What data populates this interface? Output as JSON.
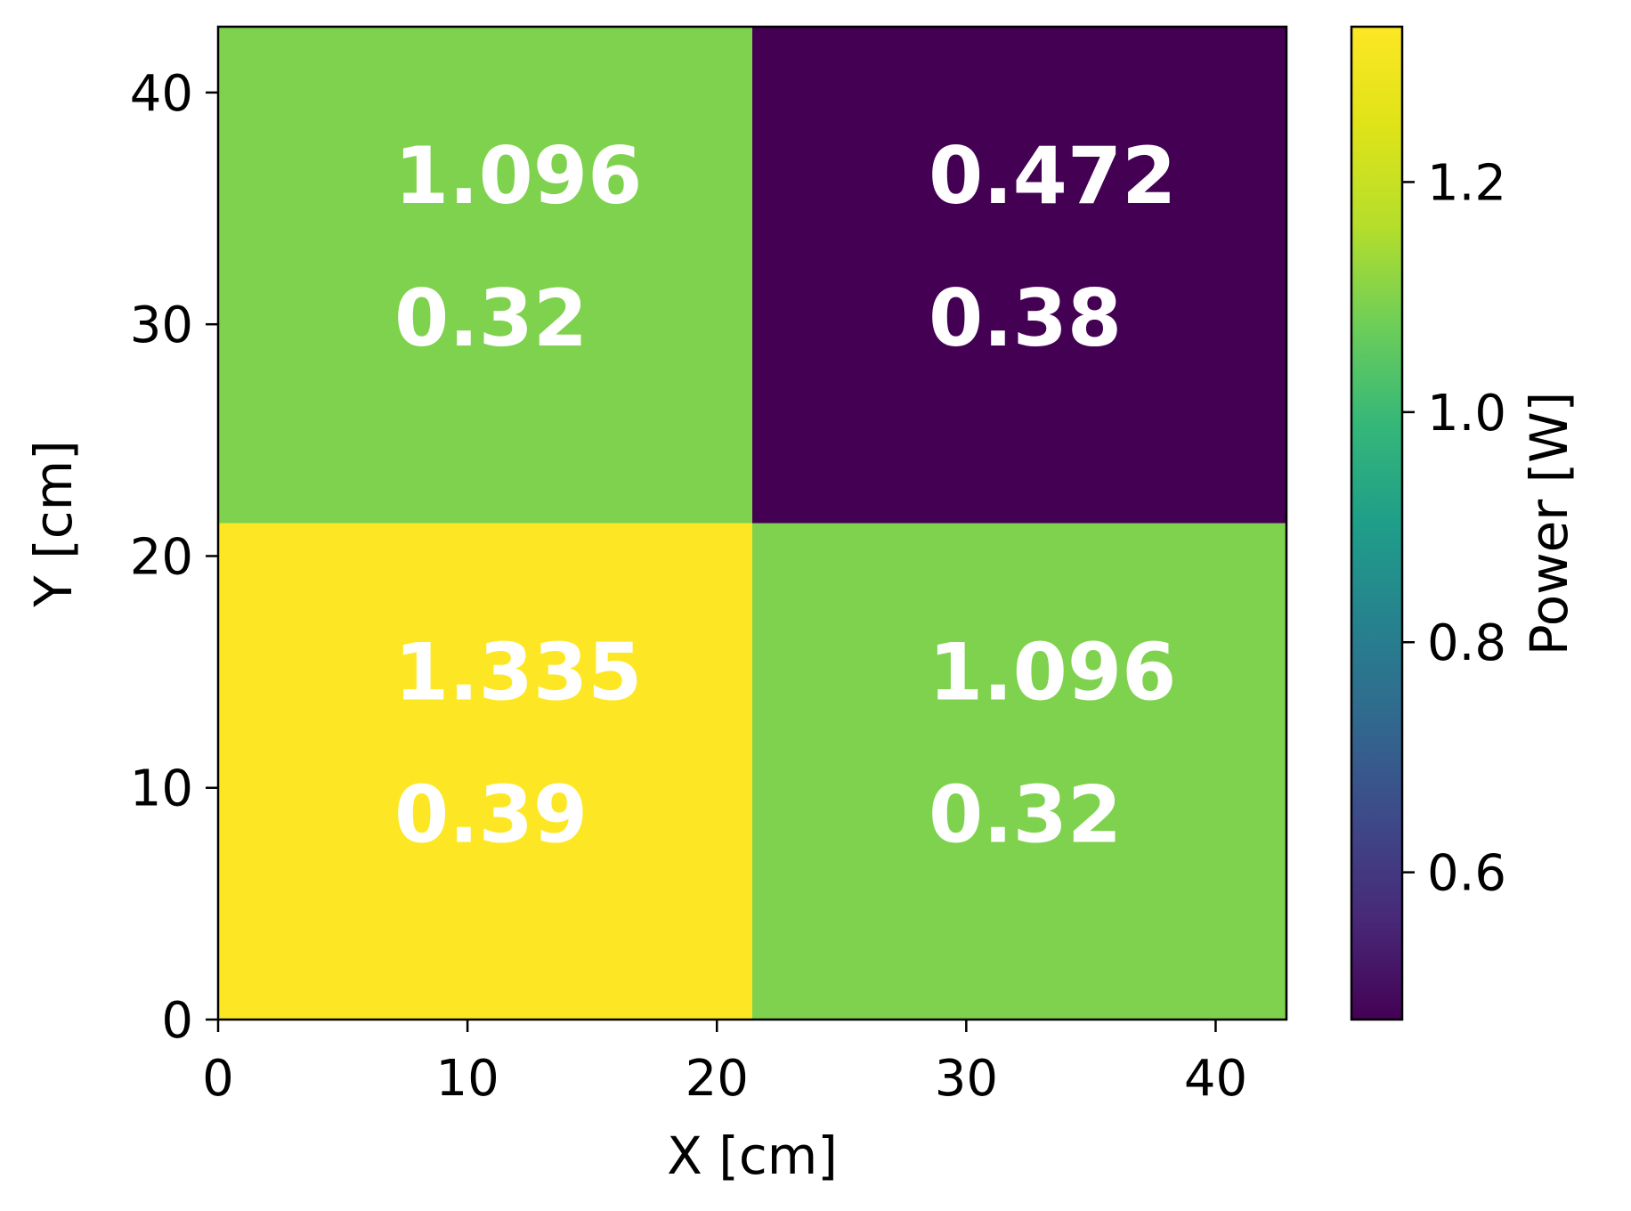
{
  "chart_data": {
    "type": "heatmap",
    "xlabel": "X [cm]",
    "ylabel": "Y [cm]",
    "xlim": [
      0,
      42.84
    ],
    "ylim": [
      0,
      42.84
    ],
    "x_ticks": [
      "0",
      "10",
      "20",
      "30",
      "40"
    ],
    "y_ticks": [
      "0",
      "10",
      "20",
      "30",
      "40"
    ],
    "cells": [
      {
        "x0": 0,
        "x1": 21.42,
        "y0": 21.42,
        "y1": 42.84,
        "value": 1.096,
        "value_label": "1.096",
        "uncertainty_label": "0.32"
      },
      {
        "x0": 21.42,
        "x1": 42.84,
        "y0": 21.42,
        "y1": 42.84,
        "value": 0.472,
        "value_label": "0.472",
        "uncertainty_label": "0.38"
      },
      {
        "x0": 0,
        "x1": 21.42,
        "y0": 0,
        "y1": 21.42,
        "value": 1.335,
        "value_label": "1.335",
        "uncertainty_label": "0.39"
      },
      {
        "x0": 21.42,
        "x1": 42.84,
        "y0": 0,
        "y1": 21.42,
        "value": 1.096,
        "value_label": "1.096",
        "uncertainty_label": "0.32"
      }
    ],
    "colorbar": {
      "label": "Power [W]",
      "colormap": "viridis",
      "range": [
        0.472,
        1.335
      ],
      "ticks": [
        "0.6",
        "0.8",
        "1.0",
        "1.2"
      ]
    }
  }
}
